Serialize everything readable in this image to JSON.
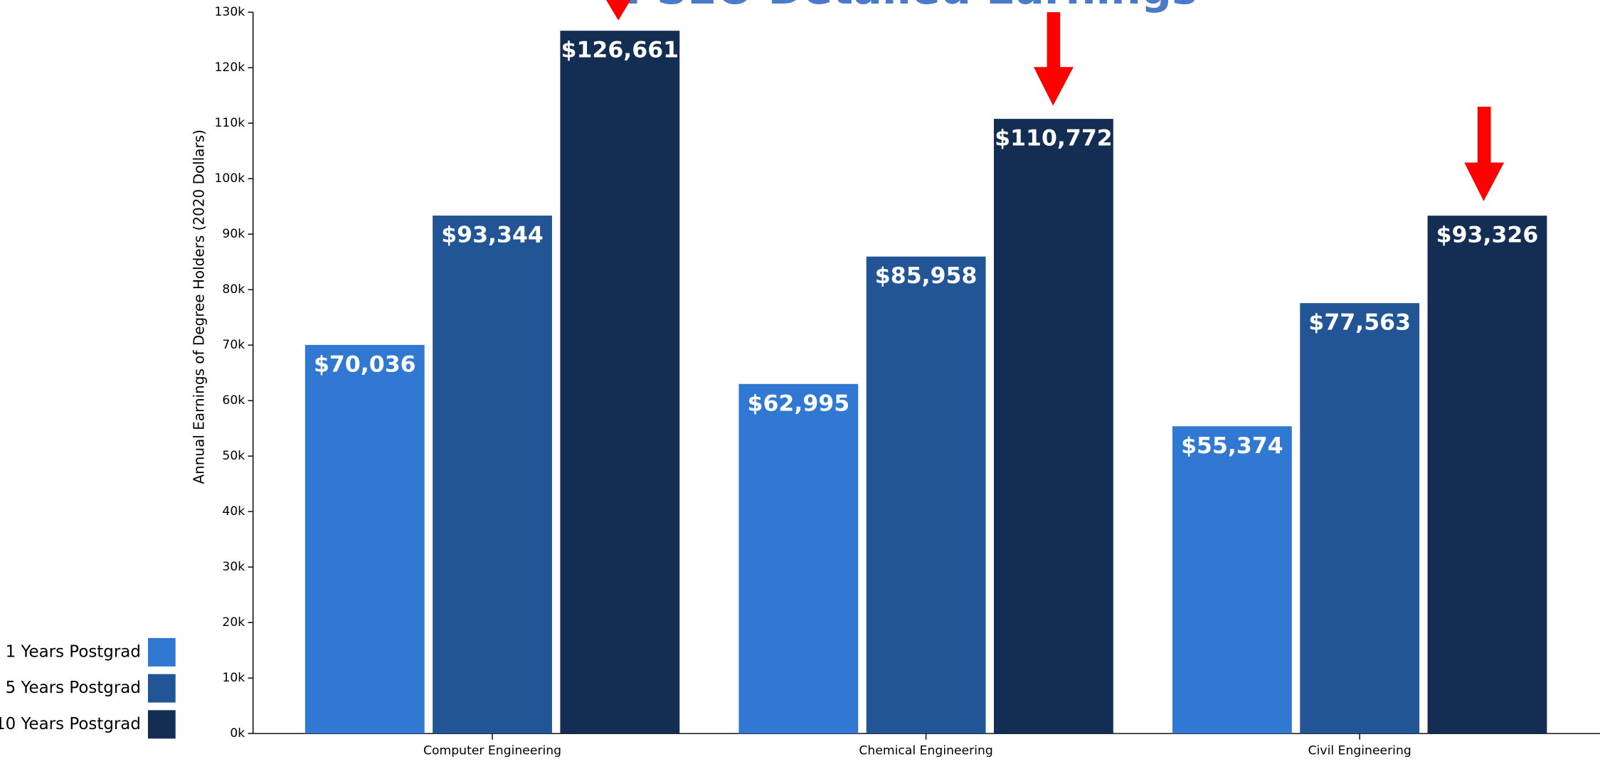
{
  "chart_data": {
    "type": "bar",
    "title": "PSEO Detailed Earnings",
    "y_label": "Annual Earnings of Degree Holders (2020 Dollars)",
    "categories": [
      "Computer Engineering",
      "Chemical Engineering",
      "Civil Engineering"
    ],
    "series": [
      {
        "name": "1 Years Postgrad",
        "color": "#3078d2",
        "values": [
          70036,
          62995,
          55374
        ],
        "value_labels": [
          "$70,036",
          "$62,995",
          "$55,374"
        ]
      },
      {
        "name": "5 Years Postgrad",
        "color": "#215596",
        "values": [
          93344,
          85958,
          77563
        ],
        "value_labels": [
          "$93,344",
          "$85,958",
          "$77,563"
        ]
      },
      {
        "name": "10 Years Postgrad",
        "color": "#132e52",
        "values": [
          126661,
          110772,
          93326
        ],
        "value_labels": [
          "$126,661",
          "$110,772",
          "$93,326"
        ]
      }
    ],
    "ylim": [
      0,
      130000
    ],
    "yticks": [
      {
        "value": 0,
        "label": "0k"
      },
      {
        "value": 10000,
        "label": "10k"
      },
      {
        "value": 20000,
        "label": "20k"
      },
      {
        "value": 30000,
        "label": "30k"
      },
      {
        "value": 40000,
        "label": "40k"
      },
      {
        "value": 50000,
        "label": "50k"
      },
      {
        "value": 60000,
        "label": "60k"
      },
      {
        "value": 70000,
        "label": "70k"
      },
      {
        "value": 80000,
        "label": "80k"
      },
      {
        "value": 90000,
        "label": "90k"
      },
      {
        "value": 100000,
        "label": "100k"
      },
      {
        "value": 110000,
        "label": "110k"
      },
      {
        "value": 120000,
        "label": "120k"
      },
      {
        "value": 130000,
        "label": "130k"
      }
    ],
    "legend": "bottom-left",
    "grid": false
  }
}
